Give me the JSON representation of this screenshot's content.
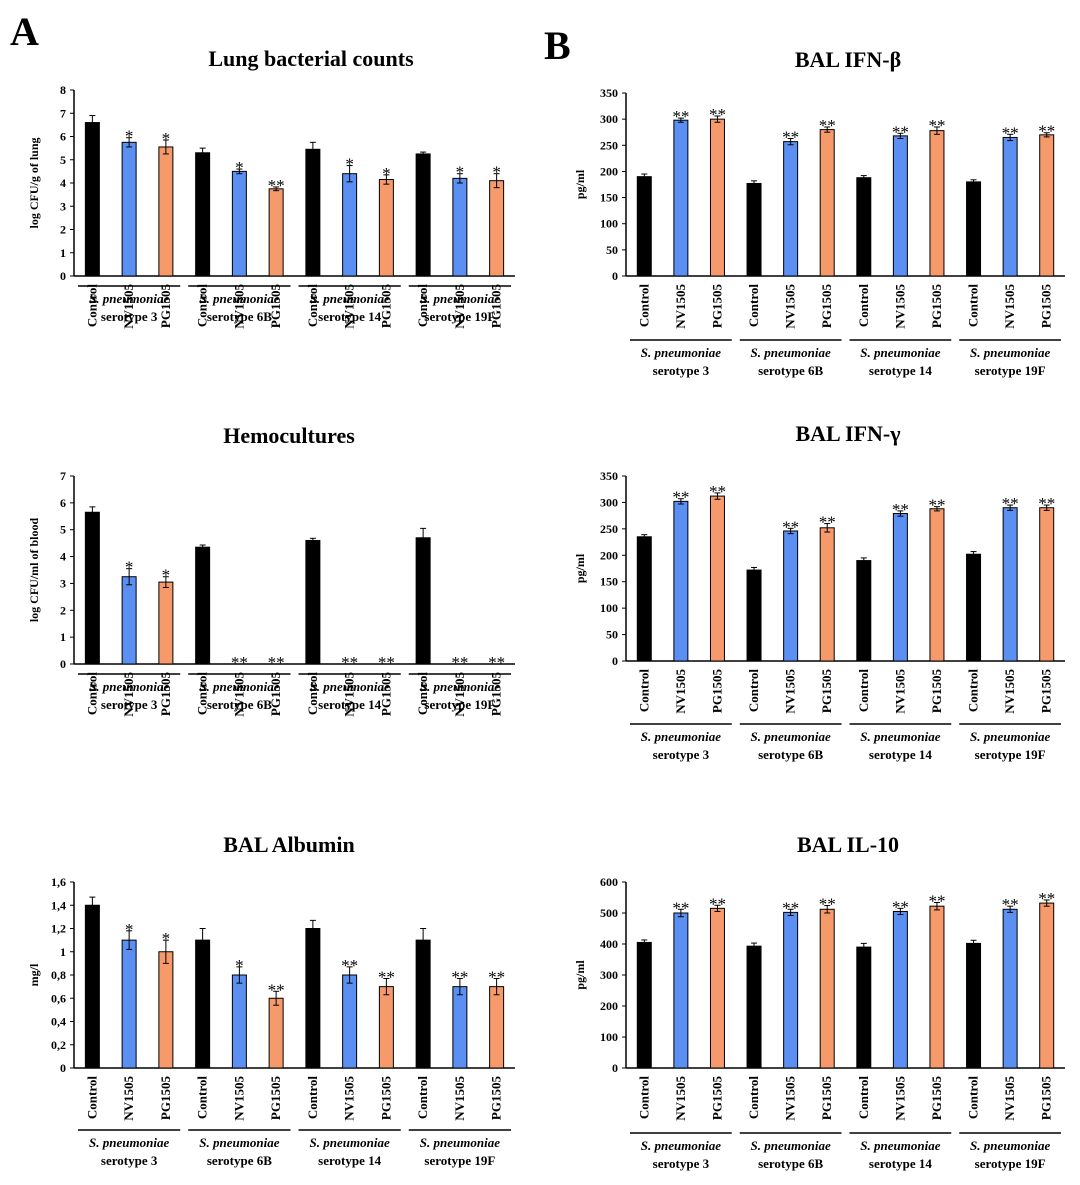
{
  "panel_labels": [
    "A",
    "B"
  ],
  "colors": {
    "Control": "#000000",
    "NV1505": "#5b8ff2",
    "PG1505": "#f79a6b"
  },
  "chart_data": [
    {
      "id": "lung",
      "type": "bar",
      "title": "Lung bacterial counts",
      "ylabel": "log CFU/g of lung",
      "ylim": [
        0,
        8
      ],
      "yticks": [
        "0",
        "1",
        "2",
        "3",
        "4",
        "5",
        "6",
        "7",
        "8"
      ],
      "categories": [
        "Control",
        "NV1505",
        "PG1505"
      ],
      "groups": [
        {
          "name": "S. pneumoniae",
          "sub": "serotype 3",
          "values": [
            6.6,
            5.75,
            5.55
          ],
          "errors": [
            0.3,
            0.2,
            0.3
          ],
          "sig": [
            "",
            "*",
            "*"
          ]
        },
        {
          "name": "S. pneumoniae",
          "sub": "serotype 6B",
          "values": [
            5.3,
            4.5,
            3.75
          ],
          "errors": [
            0.2,
            0.1,
            0.08
          ],
          "sig": [
            "",
            "*",
            "**"
          ]
        },
        {
          "name": "S. pneumoniae",
          "sub": "serotype 14",
          "values": [
            5.45,
            4.4,
            4.15
          ],
          "errors": [
            0.3,
            0.35,
            0.2
          ],
          "sig": [
            "",
            "*",
            "*"
          ]
        },
        {
          "name": "S. pneumoniae",
          "sub": "serotype 19F",
          "values": [
            5.25,
            4.2,
            4.1
          ],
          "errors": [
            0.08,
            0.2,
            0.3
          ],
          "sig": [
            "",
            "*",
            "*"
          ]
        }
      ]
    },
    {
      "id": "hemo",
      "type": "bar",
      "title": "Hemocultures",
      "ylabel": "log CFU/ml of blood",
      "ylim": [
        0,
        7
      ],
      "yticks": [
        "0",
        "1",
        "2",
        "3",
        "4",
        "5",
        "6",
        "7"
      ],
      "categories": [
        "Control",
        "NV1505",
        "PG1505"
      ],
      "groups": [
        {
          "name": "S. pneumoniae",
          "sub": "serotype 3",
          "values": [
            5.65,
            3.25,
            3.05
          ],
          "errors": [
            0.2,
            0.3,
            0.2
          ],
          "sig": [
            "",
            "*",
            "*"
          ]
        },
        {
          "name": "S. pneumoniae",
          "sub": "serotype 6B",
          "values": [
            4.35,
            0,
            0
          ],
          "errors": [
            0.08,
            0,
            0
          ],
          "sig": [
            "",
            "**",
            "**"
          ]
        },
        {
          "name": "S. pneumoniae",
          "sub": "serotype 14",
          "values": [
            4.6,
            0,
            0
          ],
          "errors": [
            0.08,
            0,
            0
          ],
          "sig": [
            "",
            "**",
            "**"
          ]
        },
        {
          "name": "S. pneumoniae",
          "sub": "serotype 19F",
          "values": [
            4.7,
            0,
            0
          ],
          "errors": [
            0.35,
            0,
            0
          ],
          "sig": [
            "",
            "**",
            "**"
          ]
        }
      ]
    },
    {
      "id": "alb",
      "type": "bar",
      "title": "BAL Albumin",
      "ylabel": "mg/l",
      "ylim": [
        0,
        1.6
      ],
      "yticks": [
        "0",
        "0,2",
        "0,4",
        "0,6",
        "0,8",
        "1",
        "1,2",
        "1,4",
        "1,6"
      ],
      "categories": [
        "Control",
        "NV1505",
        "PG1505"
      ],
      "groups": [
        {
          "name": "S. pneumoniae",
          "sub": "serotype 3",
          "values": [
            1.4,
            1.1,
            1.0
          ],
          "errors": [
            0.07,
            0.08,
            0.1
          ],
          "sig": [
            "",
            "*",
            "*"
          ]
        },
        {
          "name": "S. pneumoniae",
          "sub": "serotype 6B",
          "values": [
            1.1,
            0.8,
            0.6
          ],
          "errors": [
            0.1,
            0.07,
            0.06
          ],
          "sig": [
            "",
            "*",
            "**"
          ]
        },
        {
          "name": "S. pneumoniae",
          "sub": "serotype 14",
          "values": [
            1.2,
            0.8,
            0.7
          ],
          "errors": [
            0.07,
            0.07,
            0.07
          ],
          "sig": [
            "",
            "**",
            "**"
          ]
        },
        {
          "name": "S. pneumoniae",
          "sub": "serotype 19F",
          "values": [
            1.1,
            0.7,
            0.7
          ],
          "errors": [
            0.1,
            0.07,
            0.07
          ],
          "sig": [
            "",
            "**",
            "**"
          ]
        }
      ]
    },
    {
      "id": "ifnb",
      "type": "bar",
      "title": "BAL IFN-β",
      "ylabel": "pg/ml",
      "ylim": [
        0,
        350
      ],
      "yticks": [
        "0",
        "50",
        "100",
        "150",
        "200",
        "250",
        "300",
        "350"
      ],
      "categories": [
        "Control",
        "NV1505",
        "PG1505"
      ],
      "groups": [
        {
          "name": "S. pneumoniae",
          "sub": "serotype 3",
          "values": [
            190,
            298,
            300
          ],
          "errors": [
            5,
            4,
            6
          ],
          "sig": [
            "",
            "**",
            "**"
          ]
        },
        {
          "name": "S. pneumoniae",
          "sub": "serotype 6B",
          "values": [
            177,
            257,
            280
          ],
          "errors": [
            5,
            6,
            5
          ],
          "sig": [
            "",
            "**",
            "**"
          ]
        },
        {
          "name": "S. pneumoniae",
          "sub": "serotype 14",
          "values": [
            188,
            268,
            278
          ],
          "errors": [
            4,
            5,
            7
          ],
          "sig": [
            "",
            "**",
            "**"
          ]
        },
        {
          "name": "S. pneumoniae",
          "sub": "serotype 19F",
          "values": [
            180,
            265,
            270
          ],
          "errors": [
            4,
            6,
            4
          ],
          "sig": [
            "",
            "**",
            "**"
          ]
        }
      ]
    },
    {
      "id": "ifng",
      "type": "bar",
      "title": "BAL IFN-γ",
      "ylabel": "pg/ml",
      "ylim": [
        0,
        350
      ],
      "yticks": [
        "0",
        "50",
        "100",
        "150",
        "200",
        "250",
        "300",
        "350"
      ],
      "categories": [
        "Control",
        "NV1505",
        "PG1505"
      ],
      "groups": [
        {
          "name": "S. pneumoniae",
          "sub": "serotype 3",
          "values": [
            235,
            302,
            312
          ],
          "errors": [
            4,
            5,
            6
          ],
          "sig": [
            "",
            "**",
            "**"
          ]
        },
        {
          "name": "S. pneumoniae",
          "sub": "serotype 6B",
          "values": [
            172,
            246,
            252
          ],
          "errors": [
            5,
            5,
            8
          ],
          "sig": [
            "",
            "**",
            "**"
          ]
        },
        {
          "name": "S. pneumoniae",
          "sub": "serotype 14",
          "values": [
            190,
            279,
            288
          ],
          "errors": [
            5,
            5,
            4
          ],
          "sig": [
            "",
            "**",
            "**"
          ]
        },
        {
          "name": "S. pneumoniae",
          "sub": "serotype 19F",
          "values": [
            202,
            290,
            290
          ],
          "errors": [
            5,
            5,
            5
          ],
          "sig": [
            "",
            "**",
            "**"
          ]
        }
      ]
    },
    {
      "id": "il10",
      "type": "bar",
      "title": "BAL IL-10",
      "ylabel": "pg/ml",
      "ylim": [
        0,
        600
      ],
      "yticks": [
        "0",
        "100",
        "200",
        "300",
        "400",
        "500",
        "600"
      ],
      "categories": [
        "Control",
        "NV1505",
        "PG1505"
      ],
      "groups": [
        {
          "name": "S. pneumoniae",
          "sub": "serotype 3",
          "values": [
            405,
            500,
            515
          ],
          "errors": [
            8,
            12,
            10
          ],
          "sig": [
            "",
            "**",
            "**"
          ]
        },
        {
          "name": "S. pneumoniae",
          "sub": "serotype 6B",
          "values": [
            393,
            502,
            512
          ],
          "errors": [
            10,
            10,
            12
          ],
          "sig": [
            "",
            "**",
            "**"
          ]
        },
        {
          "name": "S. pneumoniae",
          "sub": "serotype 14",
          "values": [
            390,
            505,
            522
          ],
          "errors": [
            12,
            10,
            12
          ],
          "sig": [
            "",
            "**",
            "**"
          ]
        },
        {
          "name": "S. pneumoniae",
          "sub": "serotype 19F",
          "values": [
            402,
            512,
            532
          ],
          "errors": [
            10,
            10,
            10
          ],
          "sig": [
            "",
            "**",
            "**"
          ]
        }
      ]
    }
  ]
}
